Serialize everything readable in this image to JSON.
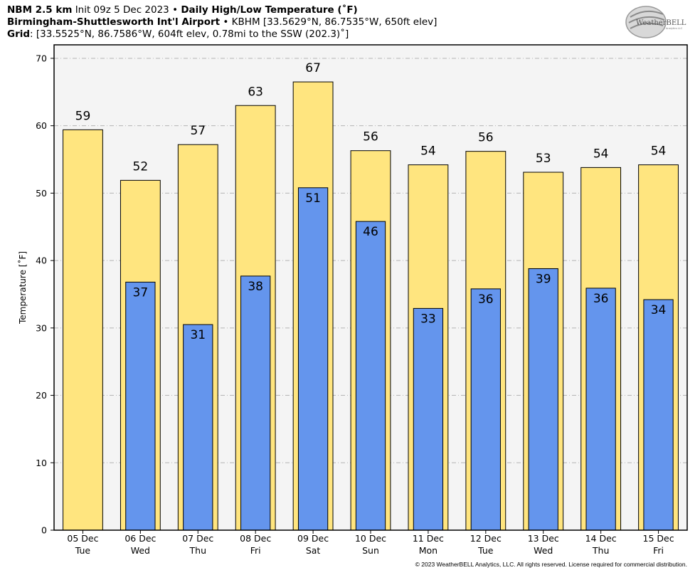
{
  "header": {
    "line1": {
      "model": "NBM 2.5 km",
      "init": "Init 09z 5 Dec 2023",
      "sep": "•",
      "product": "Daily High/Low Temperature (˚F)"
    },
    "line2": {
      "station": "Birmingham-Shuttlesworth Int'l Airport",
      "sep": "•",
      "details": "KBHM [33.5629°N, 86.7535°W, 650ft elev]"
    },
    "line3": {
      "label": "Grid",
      "details": ": [33.5525°N, 86.7586°W, 604ft elev, 0.78mi to the SSW (202.3)˚]"
    }
  },
  "logo": {
    "text": "WeatherBELL",
    "sub": "Analytics LLC"
  },
  "copyright": "© 2023 WeatherBELL Analytics, LLC. All rights reserved. License required for commercial distribution.",
  "colors": {
    "high": "#FFE57F",
    "low": "#6495ED",
    "plot_bg": "#F4F4F4",
    "grid": "#B4B4B4"
  },
  "chart_data": {
    "type": "bar",
    "ylabel": "Temperature [˚F]",
    "ylim": [
      0,
      72
    ],
    "yticks": [
      0,
      10,
      20,
      30,
      40,
      50,
      60,
      70
    ],
    "grid": "horizontal dashed",
    "categories": [
      {
        "date": "05 Dec",
        "day": "Tue"
      },
      {
        "date": "06 Dec",
        "day": "Wed"
      },
      {
        "date": "07 Dec",
        "day": "Thu"
      },
      {
        "date": "08 Dec",
        "day": "Fri"
      },
      {
        "date": "09 Dec",
        "day": "Sat"
      },
      {
        "date": "10 Dec",
        "day": "Sun"
      },
      {
        "date": "11 Dec",
        "day": "Mon"
      },
      {
        "date": "12 Dec",
        "day": "Tue"
      },
      {
        "date": "13 Dec",
        "day": "Wed"
      },
      {
        "date": "14 Dec",
        "day": "Thu"
      },
      {
        "date": "15 Dec",
        "day": "Fri"
      }
    ],
    "series": [
      {
        "key": "high",
        "values": [
          59.4,
          51.9,
          57.2,
          63.0,
          66.5,
          56.3,
          54.2,
          56.2,
          53.1,
          53.8,
          54.2
        ],
        "labels": [
          "59",
          "52",
          "57",
          "63",
          "67",
          "56",
          "54",
          "56",
          "53",
          "54",
          "54"
        ]
      },
      {
        "key": "low",
        "values": [
          null,
          36.8,
          30.5,
          37.7,
          50.8,
          45.8,
          32.9,
          35.8,
          38.8,
          35.9,
          34.2
        ],
        "labels": [
          null,
          "37",
          "31",
          "38",
          "51",
          "46",
          "33",
          "36",
          "39",
          "36",
          "34"
        ]
      }
    ]
  }
}
